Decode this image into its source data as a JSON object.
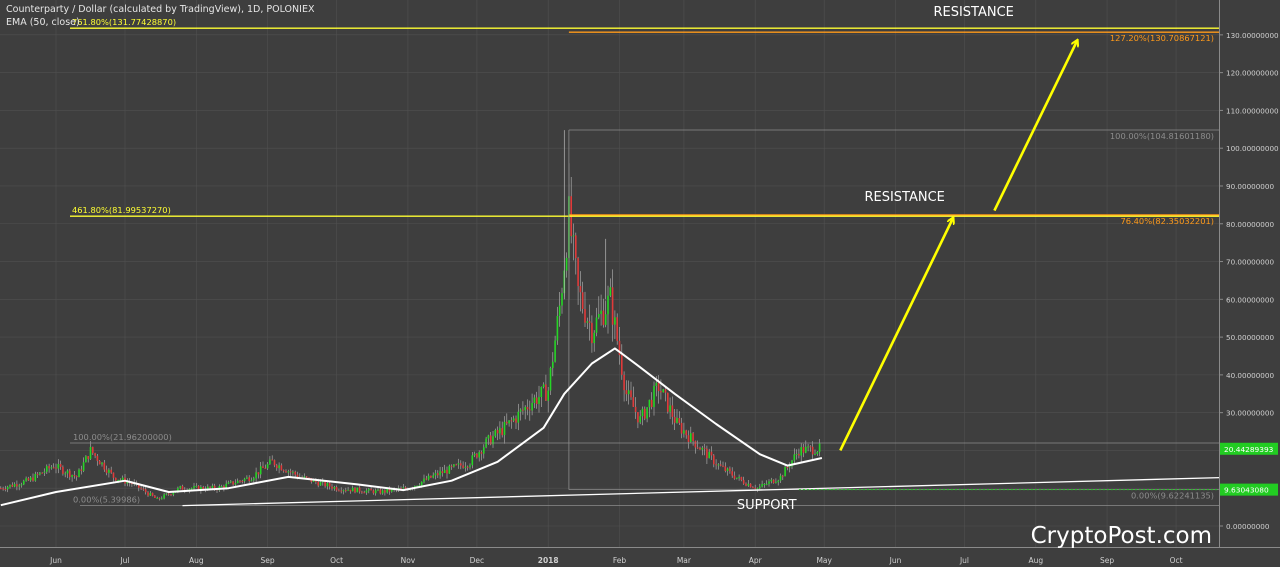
{
  "header": {
    "symbol_line": "Counterparty / Dollar (calculated by TradingView), 1D, POLONIEX",
    "indicator_line": "EMA (50, close)"
  },
  "watermark": "CryptoPost.com",
  "colors": {
    "background": "#3e3e3e",
    "up_candle": "#26d626",
    "down_candle": "#e03a3a",
    "wick": "#b8b8b8",
    "ema": "#ffffff",
    "fib_yellow": "#ffff33",
    "fib_orange": "#ff9a1a",
    "arrow": "#ffff00",
    "grid": "#505050",
    "axis_text": "#d0d0d0",
    "price_tag_green": "#22cc22"
  },
  "chart_data": {
    "type": "candlestick",
    "title": "Counterparty / Dollar (calculated by TradingView), 1D, POLONIEX",
    "xlabel": "",
    "ylabel": "",
    "ylim": [
      -2,
      132
    ],
    "grid": true,
    "y_ticks": [
      "0.00000000",
      "10.00000000",
      "20.00000000",
      "30.00000000",
      "40.00000000",
      "50.00000000",
      "60.00000000",
      "70.00000000",
      "80.00000000",
      "90.00000000",
      "100.00000000",
      "110.00000000",
      "120.00000000",
      "130.00000000"
    ],
    "y_tick_values": [
      0,
      10,
      20,
      30,
      40,
      50,
      60,
      70,
      80,
      90,
      100,
      110,
      120,
      130
    ],
    "x_ticks": [
      {
        "label": "Jun",
        "date": "2017-06-01"
      },
      {
        "label": "Jul",
        "date": "2017-07-01"
      },
      {
        "label": "Aug",
        "date": "2017-08-01"
      },
      {
        "label": "Sep",
        "date": "2017-09-01"
      },
      {
        "label": "Oct",
        "date": "2017-10-01"
      },
      {
        "label": "Nov",
        "date": "2017-11-01"
      },
      {
        "label": "Dec",
        "date": "2017-12-01"
      },
      {
        "label": "2018",
        "date": "2018-01-01"
      },
      {
        "label": "Feb",
        "date": "2018-02-01"
      },
      {
        "label": "Mar",
        "date": "2018-03-01"
      },
      {
        "label": "Apr",
        "date": "2018-04-01"
      },
      {
        "label": "May",
        "date": "2018-05-01"
      },
      {
        "label": "Jun",
        "date": "2018-06-01"
      },
      {
        "label": "Jul",
        "date": "2018-07-01"
      },
      {
        "label": "Aug",
        "date": "2018-08-01"
      },
      {
        "label": "Sep",
        "date": "2018-09-01"
      },
      {
        "label": "Oct",
        "date": "2018-10-01"
      }
    ],
    "price_path": [
      {
        "date": "2017-05-08",
        "close": 10
      },
      {
        "date": "2017-05-20",
        "close": 12
      },
      {
        "date": "2017-05-31",
        "close": 16
      },
      {
        "date": "2017-06-10",
        "close": 13
      },
      {
        "date": "2017-06-16",
        "close": 20
      },
      {
        "date": "2017-06-26",
        "close": 13
      },
      {
        "date": "2017-07-05",
        "close": 11
      },
      {
        "date": "2017-07-15",
        "close": 7
      },
      {
        "date": "2017-07-25",
        "close": 10
      },
      {
        "date": "2017-08-10",
        "close": 10
      },
      {
        "date": "2017-08-25",
        "close": 13
      },
      {
        "date": "2017-09-03",
        "close": 17
      },
      {
        "date": "2017-09-15",
        "close": 13
      },
      {
        "date": "2017-10-01",
        "close": 10
      },
      {
        "date": "2017-10-20",
        "close": 9
      },
      {
        "date": "2017-11-01",
        "close": 10
      },
      {
        "date": "2017-11-15",
        "close": 14
      },
      {
        "date": "2017-11-28",
        "close": 17
      },
      {
        "date": "2017-12-05",
        "close": 22
      },
      {
        "date": "2017-12-15",
        "close": 27
      },
      {
        "date": "2017-12-25",
        "close": 33
      },
      {
        "date": "2018-01-01",
        "close": 36
      },
      {
        "date": "2018-01-06",
        "close": 58
      },
      {
        "date": "2018-01-10",
        "close": 82
      },
      {
        "date": "2018-01-14",
        "close": 62
      },
      {
        "date": "2018-01-20",
        "close": 52
      },
      {
        "date": "2018-01-28",
        "close": 60
      },
      {
        "date": "2018-02-04",
        "close": 35
      },
      {
        "date": "2018-02-10",
        "close": 28
      },
      {
        "date": "2018-02-18",
        "close": 37
      },
      {
        "date": "2018-02-26",
        "close": 27
      },
      {
        "date": "2018-03-06",
        "close": 22
      },
      {
        "date": "2018-03-16",
        "close": 16
      },
      {
        "date": "2018-03-26",
        "close": 12
      },
      {
        "date": "2018-04-02",
        "close": 10
      },
      {
        "date": "2018-04-12",
        "close": 13
      },
      {
        "date": "2018-04-20",
        "close": 20
      },
      {
        "date": "2018-04-28",
        "close": 20.44
      }
    ],
    "ema_path": [
      {
        "date": "2017-05-08",
        "value": 5.5
      },
      {
        "date": "2017-06-01",
        "value": 9
      },
      {
        "date": "2017-07-01",
        "value": 12
      },
      {
        "date": "2017-07-20",
        "value": 9
      },
      {
        "date": "2017-08-15",
        "value": 10
      },
      {
        "date": "2017-09-10",
        "value": 13
      },
      {
        "date": "2017-10-10",
        "value": 11
      },
      {
        "date": "2017-10-30",
        "value": 9.5
      },
      {
        "date": "2017-11-20",
        "value": 12
      },
      {
        "date": "2017-12-10",
        "value": 17
      },
      {
        "date": "2017-12-30",
        "value": 26
      },
      {
        "date": "2018-01-08",
        "value": 35
      },
      {
        "date": "2018-01-20",
        "value": 43
      },
      {
        "date": "2018-01-30",
        "value": 47
      },
      {
        "date": "2018-02-10",
        "value": 42
      },
      {
        "date": "2018-02-25",
        "value": 35
      },
      {
        "date": "2018-03-15",
        "value": 27
      },
      {
        "date": "2018-04-03",
        "value": 19
      },
      {
        "date": "2018-04-15",
        "value": 16
      },
      {
        "date": "2018-04-30",
        "value": 18
      }
    ],
    "hlines": [
      {
        "label": "761.80%(131.77428870)",
        "value": 131.77,
        "color": "yellow",
        "label_side": "left"
      },
      {
        "label": "127.20%(130.70867121)",
        "value": 130.71,
        "color": "orange",
        "label_side": "right"
      },
      {
        "label": "100.00%(104.81601180)",
        "value": 104.82,
        "color": "gray",
        "label_side": "right"
      },
      {
        "label": "461.80%(81.99537270)",
        "value": 82.0,
        "color": "yellow",
        "label_side": "left"
      },
      {
        "label": "76.40%(82.35032201)",
        "value": 82.35,
        "color": "orange",
        "label_side": "right"
      },
      {
        "label": "100.00%(21.96200000)",
        "value": 21.96,
        "color": "gray",
        "label_side": "left"
      },
      {
        "label": "0.00%(9.62241135)",
        "value": 9.62,
        "color": "gray",
        "label_side": "right"
      },
      {
        "label": "0.00%(5.39986)",
        "value": 5.4,
        "color": "gray",
        "label_side": "left"
      }
    ],
    "annotations": [
      {
        "text": "RESISTANCE",
        "date": "2018-07-05",
        "value": 135
      },
      {
        "text": "RESISTANCE",
        "date": "2018-06-05",
        "value": 86
      },
      {
        "text": "SUPPORT",
        "date": "2018-04-06",
        "value": 4.5
      }
    ],
    "support_line": {
      "from": {
        "date": "2017-07-26",
        "value": 5.4
      },
      "to": {
        "date": "2018-10-20",
        "value": 12.8
      }
    },
    "arrows": [
      {
        "from": {
          "date": "2018-05-08",
          "value": 20
        },
        "to": {
          "date": "2018-06-26",
          "value": 81.5
        }
      },
      {
        "from": {
          "date": "2018-07-14",
          "value": 83.5
        },
        "to": {
          "date": "2018-08-19",
          "value": 128.5
        }
      }
    ],
    "price_tags": [
      {
        "label": "20.44289393",
        "value": 20.44
      },
      {
        "label": "9.63043080",
        "value": 9.63
      }
    ]
  }
}
